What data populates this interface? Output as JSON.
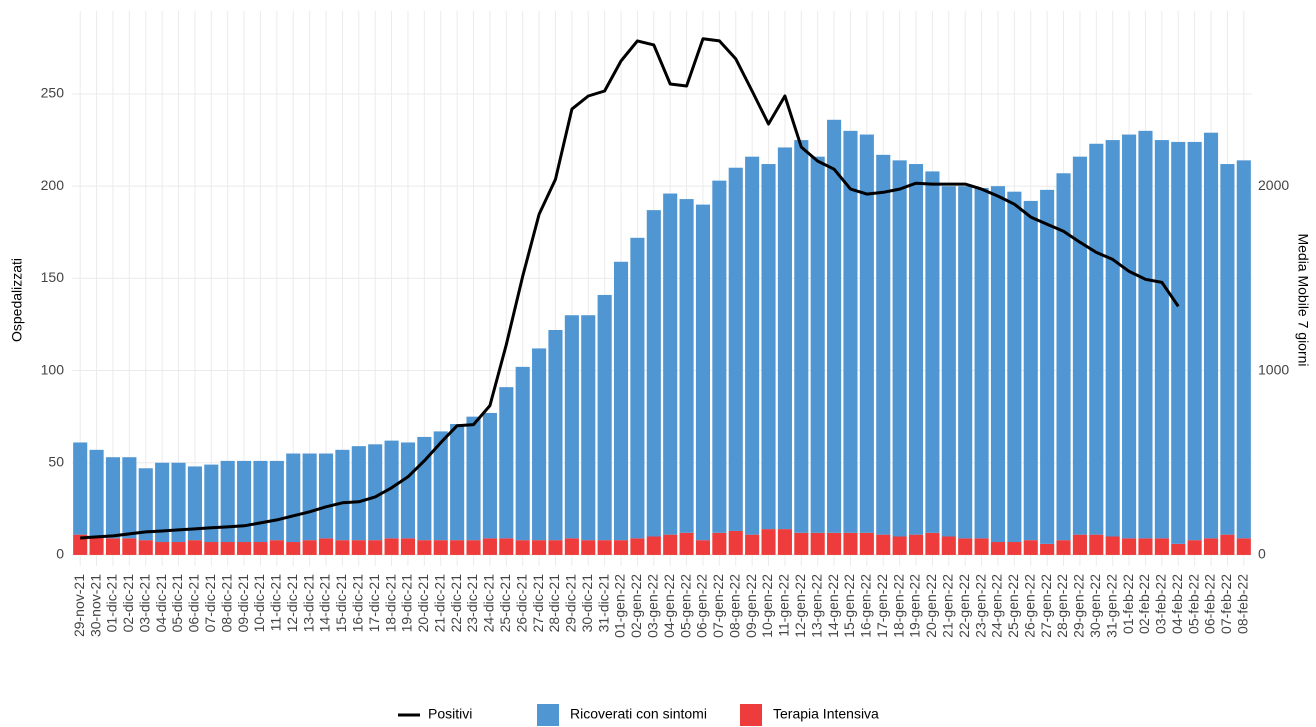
{
  "chart_data": {
    "type": "bar",
    "y_label": "Ospedalizzati",
    "y2_label": "Media Mobile 7 giorni",
    "categories": [
      "29-nov-21",
      "30-nov-21",
      "01-dic-21",
      "02-dic-21",
      "03-dic-21",
      "04-dic-21",
      "05-dic-21",
      "06-dic-21",
      "07-dic-21",
      "08-dic-21",
      "09-dic-21",
      "10-dic-21",
      "11-dic-21",
      "12-dic-21",
      "13-dic-21",
      "14-dic-21",
      "15-dic-21",
      "16-dic-21",
      "17-dic-21",
      "18-dic-21",
      "19-dic-21",
      "20-dic-21",
      "21-dic-21",
      "22-dic-21",
      "23-dic-21",
      "24-dic-21",
      "25-dic-21",
      "26-dic-21",
      "27-dic-21",
      "28-dic-21",
      "29-dic-21",
      "30-dic-21",
      "31-dic-21",
      "01-gen-22",
      "02-gen-22",
      "03-gen-22",
      "04-gen-22",
      "05-gen-22",
      "06-gen-22",
      "07-gen-22",
      "08-gen-22",
      "09-gen-22",
      "10-gen-22",
      "11-gen-22",
      "12-gen-22",
      "13-gen-22",
      "14-gen-22",
      "15-gen-22",
      "16-gen-22",
      "17-gen-22",
      "18-gen-22",
      "19-gen-22",
      "20-gen-22",
      "21-gen-22",
      "22-gen-22",
      "23-gen-22",
      "24-gen-22",
      "25-gen-22",
      "26-gen-22",
      "27-gen-22",
      "28-gen-22",
      "29-gen-22",
      "30-gen-22",
      "31-gen-22",
      "01-feb-22",
      "02-feb-22",
      "03-feb-22",
      "04-feb-22",
      "05-feb-22",
      "06-feb-22",
      "07-feb-22",
      "08-feb-22"
    ],
    "series": [
      {
        "name": "Positivi",
        "type": "line",
        "axis": "y2",
        "color": "#000000",
        "values": [
          92,
          98,
          103,
          114,
          125,
          130,
          136,
          141,
          147,
          152,
          158,
          174,
          190,
          212,
          234,
          261,
          283,
          288,
          315,
          364,
          424,
          511,
          609,
          701,
          707,
          810,
          1141,
          1511,
          1848,
          2038,
          2418,
          2489,
          2516,
          2679,
          2788,
          2766,
          2554,
          2543,
          2799,
          2788,
          2690,
          2516,
          2337,
          2489,
          2212,
          2136,
          2092,
          1984,
          1957,
          1967,
          1984,
          2016,
          2011,
          2011,
          2011,
          1984,
          1946,
          1902,
          1832,
          1793,
          1755,
          1696,
          1641,
          1603,
          1538,
          1495,
          1478,
          1348,
          null,
          null,
          null,
          null
        ]
      },
      {
        "name": "Ricoverati con sintomi",
        "type": "bar",
        "color": "#5096d2",
        "values": [
          50,
          47,
          44,
          44,
          39,
          43,
          43,
          40,
          42,
          44,
          44,
          44,
          43,
          48,
          47,
          46,
          49,
          51,
          52,
          53,
          52,
          56,
          59,
          63,
          67,
          68,
          82,
          94,
          104,
          114,
          121,
          122,
          133,
          151,
          163,
          177,
          185,
          181,
          182,
          191,
          197,
          205,
          198,
          207,
          213,
          204,
          224,
          218,
          216,
          206,
          204,
          201,
          196,
          190,
          191,
          190,
          193,
          190,
          184,
          192,
          199,
          205,
          212,
          215,
          219,
          221,
          216,
          218,
          216,
          220,
          201,
          205
        ]
      },
      {
        "name": "Terapia Intensiva",
        "type": "bar",
        "color": "#ee3b3b",
        "values": [
          11,
          10,
          9,
          9,
          8,
          7,
          7,
          8,
          7,
          7,
          7,
          7,
          8,
          7,
          8,
          9,
          8,
          8,
          8,
          9,
          9,
          8,
          8,
          8,
          8,
          9,
          9,
          8,
          8,
          8,
          9,
          8,
          8,
          8,
          9,
          10,
          11,
          12,
          8,
          12,
          13,
          11,
          14,
          14,
          12,
          12,
          12,
          12,
          12,
          11,
          10,
          11,
          12,
          10,
          9,
          9,
          7,
          7,
          8,
          6,
          8,
          11,
          11,
          10,
          9,
          9,
          9,
          6,
          8,
          9,
          11,
          9
        ]
      }
    ],
    "ylim": [
      -6,
      295
    ],
    "yticks": [
      0,
      50,
      100,
      150,
      200,
      250
    ],
    "y2lim": [
      -60,
      2950
    ],
    "y2ticks": [
      0,
      1000,
      2000
    ],
    "grid": true,
    "legend": "bottom"
  }
}
